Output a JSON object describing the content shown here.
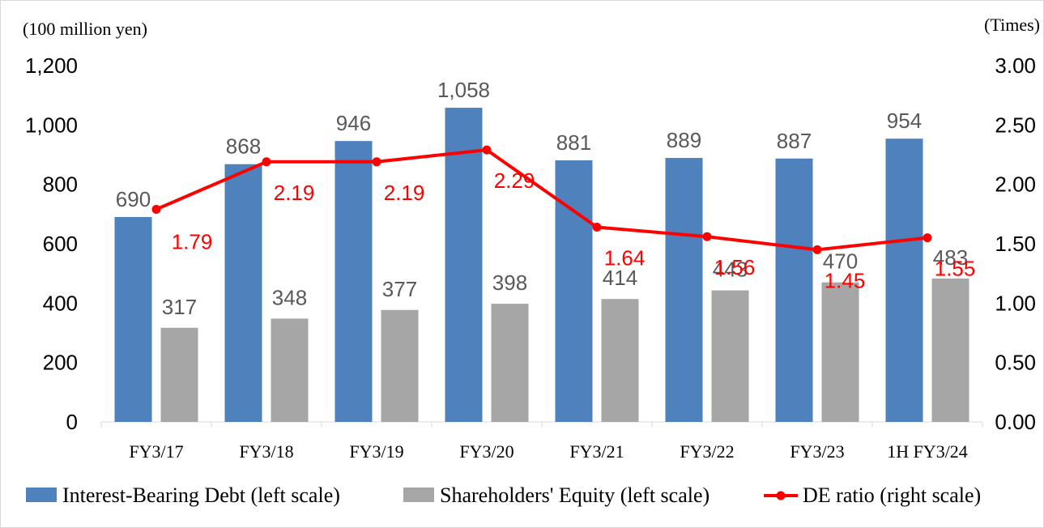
{
  "chart_data": {
    "type": "bar",
    "left_unit": "(100 million yen)",
    "right_unit": "(Times)",
    "categories": [
      "FY3/17",
      "FY3/18",
      "FY3/19",
      "FY3/20",
      "FY3/21",
      "FY3/22",
      "FY3/23",
      "1H FY3/24"
    ],
    "series": [
      {
        "name": "Interest-Bearing Debt (left scale)",
        "type": "bar",
        "axis": "left",
        "color": "#4f81bd",
        "values": [
          690,
          868,
          946,
          1058,
          881,
          889,
          887,
          954
        ],
        "labels": [
          "690",
          "868",
          "946",
          "1,058",
          "881",
          "889",
          "887",
          "954"
        ]
      },
      {
        "name": "Shareholders' Equity (left scale)",
        "type": "bar",
        "axis": "left",
        "color": "#a6a6a6",
        "values": [
          317,
          348,
          377,
          398,
          414,
          443,
          470,
          483
        ],
        "labels": [
          "317",
          "348",
          "377",
          "398",
          "414",
          "443",
          "470",
          "483"
        ]
      },
      {
        "name": "DE ratio (right scale)",
        "type": "line",
        "axis": "right",
        "color": "#ff0000",
        "values": [
          1.79,
          2.19,
          2.19,
          2.29,
          1.64,
          1.56,
          1.45,
          1.55
        ],
        "labels": [
          "1.79",
          "2.19",
          "2.19",
          "2.29",
          "1.64",
          "1.56",
          "1.45",
          "1.55"
        ]
      }
    ],
    "left_axis": {
      "min": 0,
      "max": 1200,
      "ticks": [
        "0",
        "200",
        "400",
        "600",
        "800",
        "1,000",
        "1,200"
      ]
    },
    "right_axis": {
      "min": 0,
      "max": 3,
      "ticks": [
        "0.00",
        "0.50",
        "1.00",
        "1.50",
        "2.00",
        "2.50",
        "3.00"
      ]
    },
    "grid": false,
    "legend_position": "bottom"
  }
}
